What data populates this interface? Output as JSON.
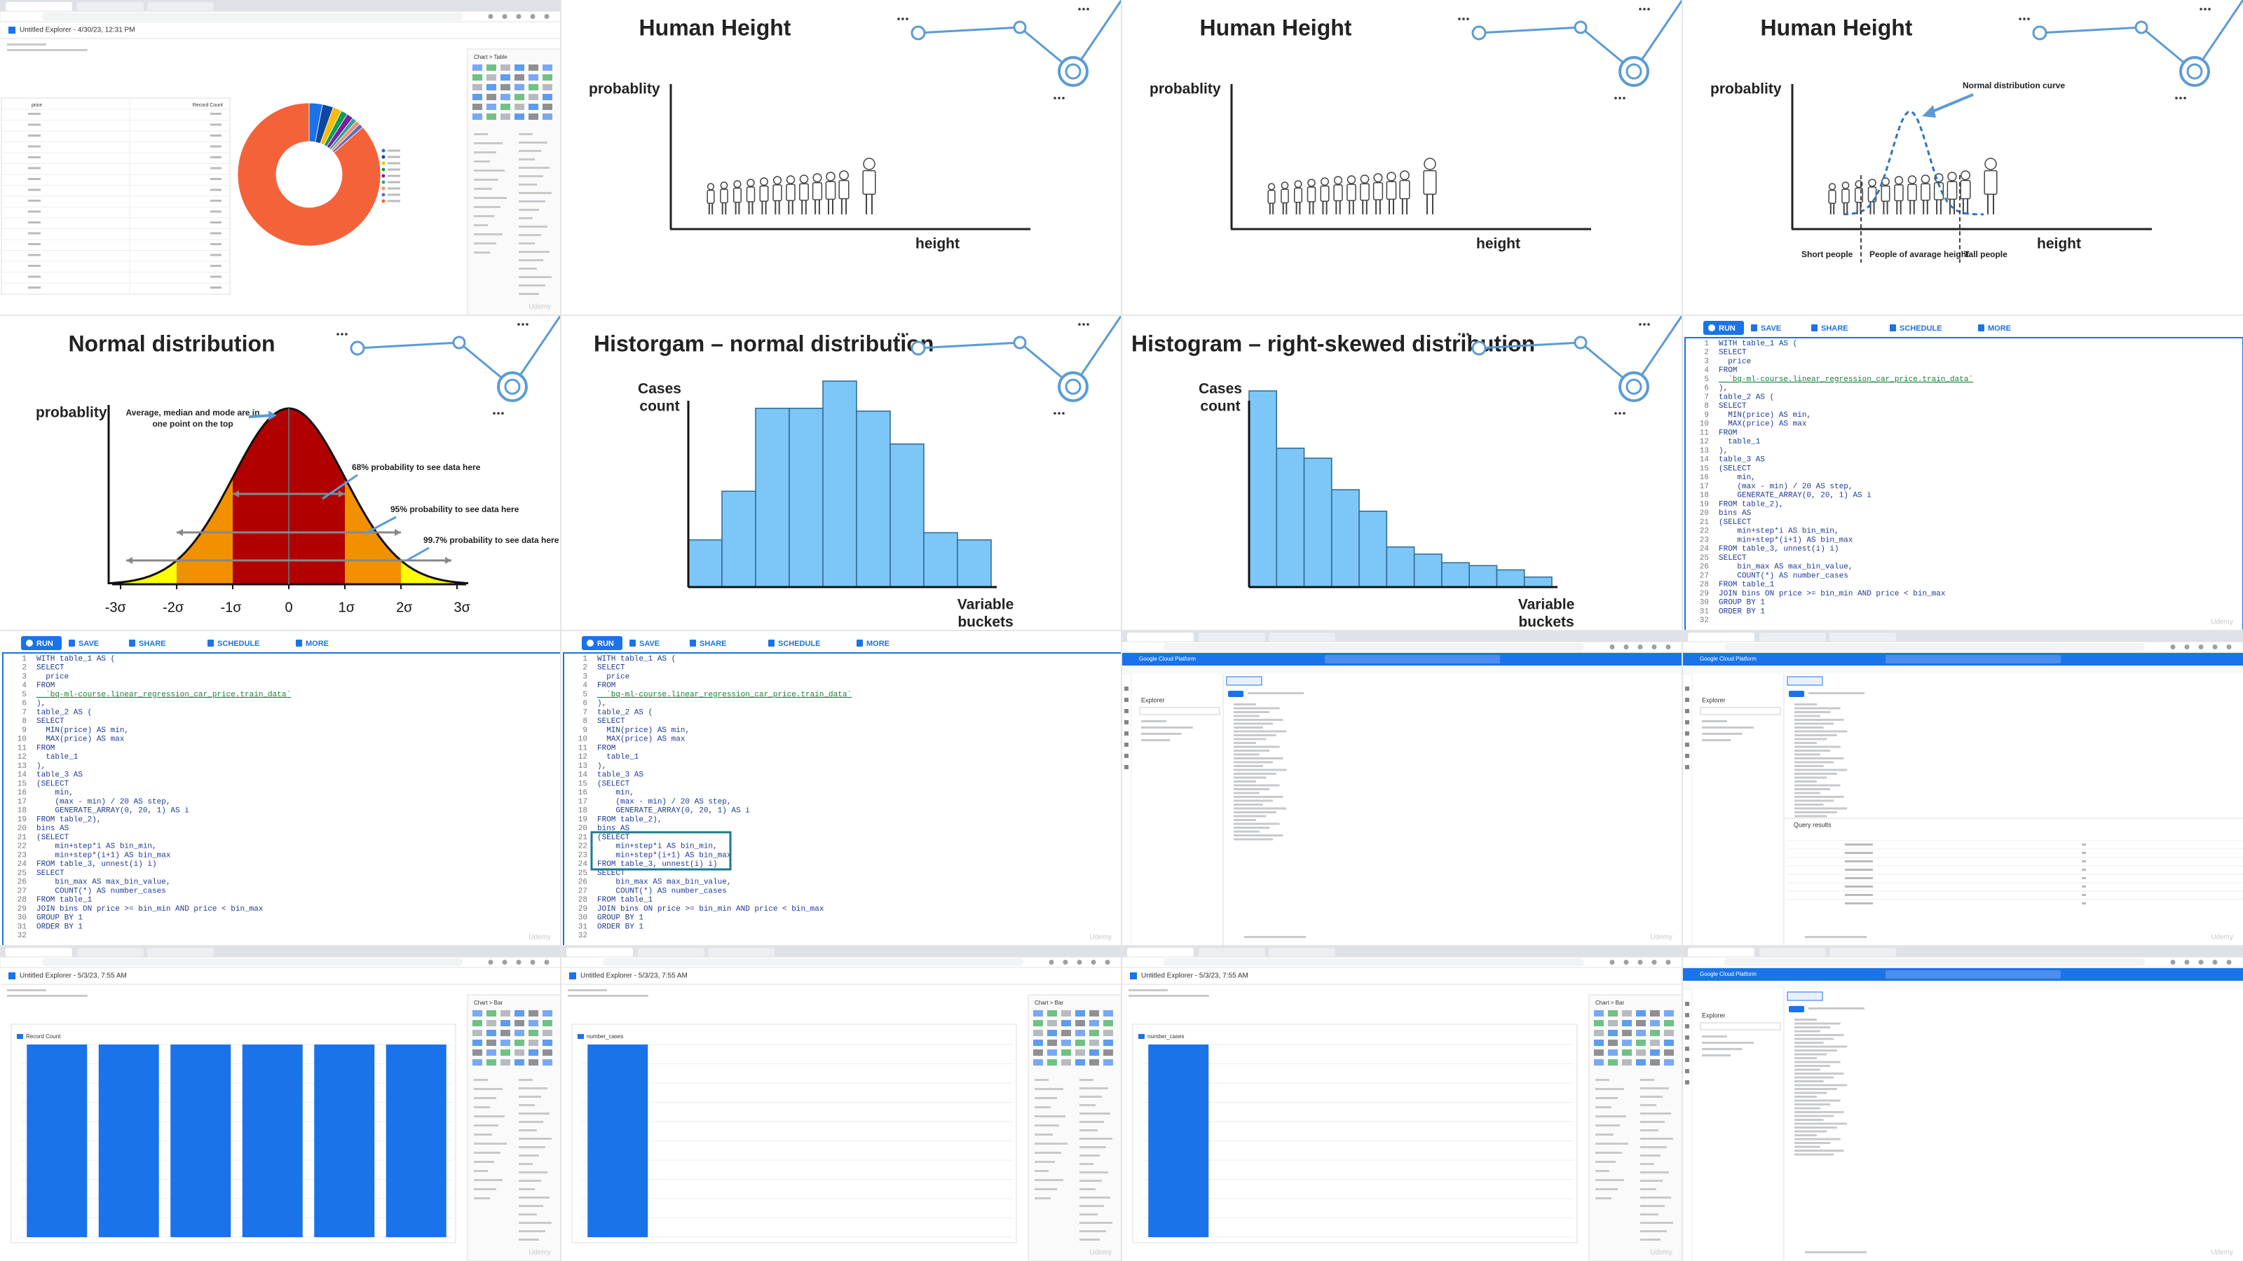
{
  "looker_table": {
    "title": "Untitled Explorer - 4/30/23, 12:31 PM",
    "panel_title": "Chart > Table",
    "column_headers": [
      "price",
      "Record Count"
    ],
    "donut": {
      "values": [
        3,
        2.5,
        2,
        1.5,
        1.5,
        1,
        1,
        1,
        86.5
      ],
      "colors": [
        "#1a73e8",
        "#0d47a1",
        "#fbbc04",
        "#0f9d58",
        "#7b1fa2",
        "#26a69a",
        "#ff8a65",
        "#5c6bc0",
        "#f4623a"
      ]
    }
  },
  "human_height": {
    "title": "Human Height",
    "y_label": "probablity",
    "x_label": "height",
    "curve_label": "Normal distribution curve",
    "groups": [
      "Short people",
      "People of avarage height",
      "Tall people"
    ]
  },
  "normal_distribution": {
    "title": "Normal distribution",
    "y_label": "probablity",
    "peak_note": [
      "Average, median and mode are in",
      "one point on the top"
    ],
    "notes": [
      "68% probability to see data here",
      "95% probability to see data here",
      "99.7% probability to see data here"
    ],
    "sigma_labels": [
      "-3σ",
      "-2σ",
      "-1σ",
      "0",
      "1σ",
      "2σ",
      "3σ"
    ]
  },
  "histogram_normal": {
    "title": "Historgam – normal distribution",
    "y_label": [
      "Cases",
      "count"
    ],
    "x_label": [
      "Variable",
      "buckets"
    ],
    "values": [
      33,
      67,
      125,
      125,
      144,
      123,
      100,
      38,
      33
    ]
  },
  "histogram_right_skewed": {
    "title": "Histogram – right-skewed distribution",
    "y_label": [
      "Cases",
      "count"
    ],
    "x_label": [
      "Variable",
      "buckets"
    ],
    "values": [
      137,
      97,
      90,
      68,
      53,
      28,
      23,
      17,
      15,
      12,
      7
    ]
  },
  "bigquery_editor": {
    "toolbar": [
      "RUN",
      "SAVE",
      "SHARE",
      "SCHEDULE",
      "MORE"
    ],
    "line_numbers": [
      "1",
      "2",
      "3",
      "4",
      "5",
      "6",
      "7",
      "8",
      "9",
      "10",
      "11",
      "12",
      "13",
      "14",
      "15",
      "16",
      "17",
      "18",
      "19",
      "20",
      "21",
      "22",
      "23",
      "24",
      "25",
      "26",
      "27",
      "28",
      "29",
      "30",
      "31",
      "32"
    ],
    "code_lines": [
      "WITH table_1 AS (",
      "SELECT",
      "  price",
      "FROM",
      "  `bq-ml-course.linear_regression_car_price.train_data`",
      "),",
      "table_2 AS (",
      "SELECT",
      "  MIN(price) AS min,",
      "  MAX(price) AS max",
      "FROM",
      "  table_1",
      "),",
      "table_3 AS",
      "(SELECT",
      "    min,",
      "    (max - min) / 20 AS step,",
      "    GENERATE_ARRAY(0, 20, 1) AS i",
      "FROM table_2),",
      "bins AS",
      "(SELECT",
      "    min+step*i AS bin_min,",
      "    min+step*(i+1) AS bin_max",
      "FROM table_3, unnest(i) i)",
      "SELECT",
      "    bin_max AS max_bin_value,",
      "    COUNT(*) AS number_cases",
      "FROM table_1",
      "JOIN bins ON price >= bin_min AND price < bin_max",
      "GROUP BY 1",
      "ORDER BY 1",
      ""
    ]
  },
  "gcp_console": {
    "product": "Google Cloud Platform",
    "explorer": "Explorer",
    "query_results": "Query results"
  },
  "looker_bar": {
    "title": "Untitled Explorer - 5/3/23, 7:55 AM",
    "panel_title": "Chart > Bar",
    "record_count": {
      "name": "Record Count",
      "color": "#1a73e8",
      "values": [
        1,
        1,
        1,
        1,
        1,
        1
      ]
    },
    "number_cases": {
      "name": "number_cases",
      "color": "#1a73e8",
      "values": [
        100,
        0,
        0,
        0,
        0,
        0
      ]
    }
  },
  "watermark": "Udemy"
}
